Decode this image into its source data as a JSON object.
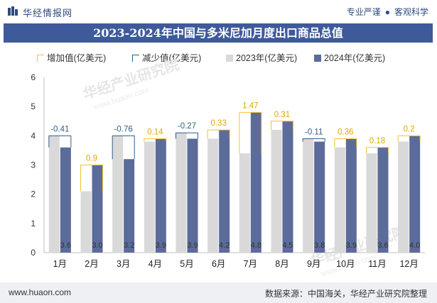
{
  "header": {
    "brand": "华经情报网",
    "tagline_left": "专业严谨",
    "tagline_right": "客观科学"
  },
  "title": "2023-2024年中国与多米尼加月度出口商品总值",
  "legend": {
    "increase": "增加值(亿美元)",
    "decrease": "减少值(亿美元)",
    "y2023": "2023年(亿美元)",
    "y2024": "2024年(亿美元)"
  },
  "watermark": "华经产业研究院",
  "watermark_url": "www.huaon.com",
  "footer": {
    "url": "www.huaon.com",
    "source": "数据来源：中国海关，华经产业研究院整理"
  },
  "colors": {
    "bar2023": "#d9d9d9",
    "bar2024": "#5b6b9a",
    "increase": "#f2c230",
    "decrease": "#2f5f8a",
    "title_bg": "#3f5a9a"
  },
  "chart_data": {
    "type": "bar",
    "categories": [
      "1月",
      "2月",
      "3月",
      "4月",
      "5月",
      "6月",
      "7月",
      "8月",
      "9月",
      "10月",
      "11月",
      "12月"
    ],
    "series": [
      {
        "name": "2023年(亿美元)",
        "values": [
          4.0,
          2.1,
          4.0,
          3.8,
          4.1,
          3.9,
          3.4,
          4.2,
          3.9,
          3.6,
          3.4,
          3.8
        ]
      },
      {
        "name": "2024年(亿美元)",
        "values": [
          3.6,
          3.0,
          3.2,
          3.9,
          3.9,
          4.2,
          4.8,
          4.5,
          3.8,
          3.9,
          3.6,
          4.0
        ]
      }
    ],
    "changes": [
      -0.41,
      0.9,
      -0.76,
      0.14,
      -0.27,
      0.33,
      1.47,
      0.31,
      -0.11,
      0.36,
      0.18,
      0.2
    ],
    "ylim": [
      0,
      6
    ],
    "yticks": [
      0,
      1,
      2,
      3,
      4,
      5,
      6
    ],
    "legend_position": "top"
  }
}
